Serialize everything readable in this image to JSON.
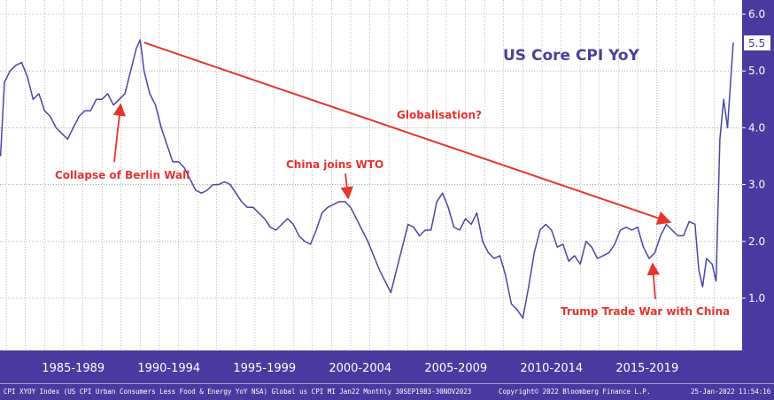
{
  "chart_data": {
    "type": "line",
    "title": "US Core CPI YoY",
    "ylim": [
      0.3,
      6.0
    ],
    "yticks": [
      "1.0",
      "2.0",
      "3.0",
      "4.0",
      "5.0",
      "6.0"
    ],
    "last_value_label": "5.5",
    "x_range": [
      1983.67,
      2022.0
    ],
    "x_categories": [
      "1985-1989",
      "1990-1994",
      "1995-1999",
      "2000-2004",
      "2005-2009",
      "2010-2014",
      "2015-2019"
    ],
    "grid": true,
    "series": [
      {
        "color": "#4b45a8",
        "points": [
          [
            1983.7,
            3.5
          ],
          [
            1983.9,
            4.8
          ],
          [
            1984.2,
            5.0
          ],
          [
            1984.5,
            5.1
          ],
          [
            1984.8,
            5.15
          ],
          [
            1985.1,
            4.9
          ],
          [
            1985.4,
            4.5
          ],
          [
            1985.7,
            4.6
          ],
          [
            1986.0,
            4.3
          ],
          [
            1986.3,
            4.2
          ],
          [
            1986.6,
            4.0
          ],
          [
            1986.9,
            3.9
          ],
          [
            1987.2,
            3.8
          ],
          [
            1987.5,
            4.0
          ],
          [
            1987.8,
            4.2
          ],
          [
            1988.1,
            4.3
          ],
          [
            1988.4,
            4.3
          ],
          [
            1988.7,
            4.5
          ],
          [
            1989.0,
            4.5
          ],
          [
            1989.3,
            4.6
          ],
          [
            1989.6,
            4.4
          ],
          [
            1989.9,
            4.5
          ],
          [
            1990.2,
            4.6
          ],
          [
            1990.5,
            5.0
          ],
          [
            1990.8,
            5.4
          ],
          [
            1991.0,
            5.55
          ],
          [
            1991.2,
            5.0
          ],
          [
            1991.5,
            4.6
          ],
          [
            1991.8,
            4.4
          ],
          [
            1992.1,
            4.0
          ],
          [
            1992.4,
            3.7
          ],
          [
            1992.7,
            3.4
          ],
          [
            1993.0,
            3.4
          ],
          [
            1993.3,
            3.3
          ],
          [
            1993.6,
            3.1
          ],
          [
            1993.9,
            2.9
          ],
          [
            1994.2,
            2.85
          ],
          [
            1994.5,
            2.9
          ],
          [
            1994.8,
            3.0
          ],
          [
            1995.1,
            3.0
          ],
          [
            1995.4,
            3.05
          ],
          [
            1995.7,
            3.0
          ],
          [
            1996.0,
            2.85
          ],
          [
            1996.3,
            2.7
          ],
          [
            1996.6,
            2.6
          ],
          [
            1996.9,
            2.6
          ],
          [
            1997.2,
            2.5
          ],
          [
            1997.5,
            2.4
          ],
          [
            1997.8,
            2.25
          ],
          [
            1998.1,
            2.2
          ],
          [
            1998.4,
            2.3
          ],
          [
            1998.7,
            2.4
          ],
          [
            1999.0,
            2.3
          ],
          [
            1999.3,
            2.1
          ],
          [
            1999.6,
            2.0
          ],
          [
            1999.9,
            1.95
          ],
          [
            2000.2,
            2.2
          ],
          [
            2000.5,
            2.5
          ],
          [
            2000.8,
            2.6
          ],
          [
            2001.1,
            2.65
          ],
          [
            2001.4,
            2.7
          ],
          [
            2001.7,
            2.7
          ],
          [
            2002.0,
            2.6
          ],
          [
            2002.3,
            2.4
          ],
          [
            2002.6,
            2.2
          ],
          [
            2002.9,
            2.0
          ],
          [
            2003.2,
            1.75
          ],
          [
            2003.5,
            1.5
          ],
          [
            2003.8,
            1.3
          ],
          [
            2004.1,
            1.1
          ],
          [
            2004.4,
            1.5
          ],
          [
            2004.7,
            1.9
          ],
          [
            2005.0,
            2.3
          ],
          [
            2005.3,
            2.25
          ],
          [
            2005.6,
            2.1
          ],
          [
            2005.9,
            2.2
          ],
          [
            2006.2,
            2.2
          ],
          [
            2006.5,
            2.7
          ],
          [
            2006.8,
            2.85
          ],
          [
            2007.1,
            2.6
          ],
          [
            2007.4,
            2.25
          ],
          [
            2007.7,
            2.2
          ],
          [
            2008.0,
            2.4
          ],
          [
            2008.3,
            2.3
          ],
          [
            2008.6,
            2.5
          ],
          [
            2008.9,
            2.0
          ],
          [
            2009.2,
            1.8
          ],
          [
            2009.5,
            1.7
          ],
          [
            2009.8,
            1.75
          ],
          [
            2010.1,
            1.4
          ],
          [
            2010.4,
            0.9
          ],
          [
            2010.7,
            0.8
          ],
          [
            2011.0,
            0.65
          ],
          [
            2011.3,
            1.2
          ],
          [
            2011.6,
            1.8
          ],
          [
            2011.9,
            2.2
          ],
          [
            2012.2,
            2.3
          ],
          [
            2012.5,
            2.2
          ],
          [
            2012.8,
            1.9
          ],
          [
            2013.1,
            1.95
          ],
          [
            2013.4,
            1.65
          ],
          [
            2013.7,
            1.75
          ],
          [
            2014.0,
            1.6
          ],
          [
            2014.3,
            2.0
          ],
          [
            2014.6,
            1.9
          ],
          [
            2014.9,
            1.7
          ],
          [
            2015.2,
            1.75
          ],
          [
            2015.5,
            1.8
          ],
          [
            2015.8,
            1.95
          ],
          [
            2016.1,
            2.2
          ],
          [
            2016.4,
            2.25
          ],
          [
            2016.7,
            2.2
          ],
          [
            2017.0,
            2.25
          ],
          [
            2017.3,
            1.9
          ],
          [
            2017.6,
            1.7
          ],
          [
            2017.9,
            1.8
          ],
          [
            2018.2,
            2.1
          ],
          [
            2018.5,
            2.3
          ],
          [
            2018.8,
            2.2
          ],
          [
            2019.1,
            2.1
          ],
          [
            2019.4,
            2.1
          ],
          [
            2019.7,
            2.35
          ],
          [
            2020.0,
            2.3
          ],
          [
            2020.2,
            1.5
          ],
          [
            2020.4,
            1.2
          ],
          [
            2020.6,
            1.7
          ],
          [
            2020.9,
            1.6
          ],
          [
            2021.1,
            1.3
          ],
          [
            2021.3,
            3.8
          ],
          [
            2021.5,
            4.5
          ],
          [
            2021.7,
            4.0
          ],
          [
            2021.9,
            5.0
          ],
          [
            2022.0,
            5.5
          ]
        ]
      }
    ],
    "trend_arrow": {
      "from": [
        1991.2,
        5.5
      ],
      "to": [
        2018.6,
        2.35
      ]
    }
  },
  "annotations": {
    "globalisation": "Globalisation?",
    "berlin_wall": "Collapse of Berlin Wall",
    "wto": "China joins WTO",
    "trade_war": "Trump Trade War with China"
  },
  "footer": {
    "source": "CPI XYOY Index (US CPI Urban Consumers Less Food & Energy YoY NSA) Global us CPI MI Jan22  Monthly 30SEP1983-30NOV2023",
    "copyright": "Copyright© 2022 Bloomberg Finance L.P.",
    "timestamp": "25-Jan-2022  11:54:16"
  },
  "colors": {
    "frame": "#4a3aa0",
    "line": "#4b45a8",
    "annotation": "#e8342f",
    "title": "#4b3f9a",
    "grid": "#7c7c7c"
  }
}
